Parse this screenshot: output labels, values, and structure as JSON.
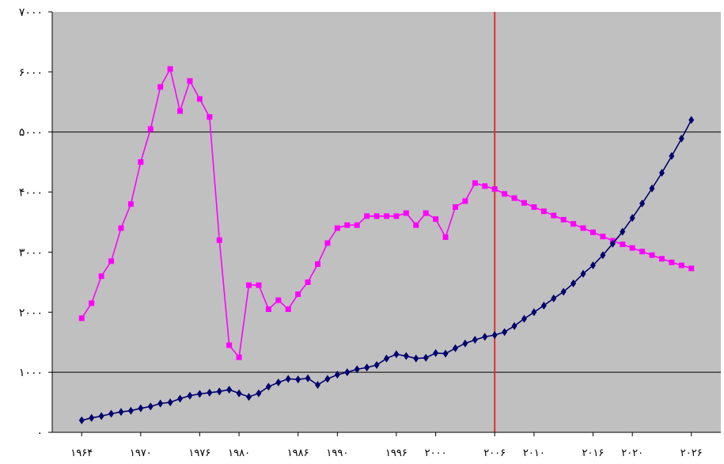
{
  "chart_data": {
    "type": "line",
    "title": "",
    "xlabel": "",
    "ylabel": "",
    "xlim": [
      1961,
      2029
    ],
    "ylim": [
      0,
      7000
    ],
    "grid": "horizontal lines at 1000 and 5000",
    "plot_background": "#c0c0c0",
    "vertical_marker": {
      "x": 2006,
      "color": "#e03030"
    },
    "y_ticks": [
      {
        "value": 0,
        "label": "۰"
      },
      {
        "value": 1000,
        "label": "۱۰۰۰"
      },
      {
        "value": 2000,
        "label": "۲۰۰۰"
      },
      {
        "value": 3000,
        "label": "۳۰۰۰"
      },
      {
        "value": 4000,
        "label": "۴۰۰۰"
      },
      {
        "value": 5000,
        "label": "۵۰۰۰"
      },
      {
        "value": 6000,
        "label": "۶۰۰۰"
      },
      {
        "value": 7000,
        "label": "۷۰۰۰"
      }
    ],
    "x_ticks": [
      {
        "value": 1964,
        "label": "۱۹۶۴"
      },
      {
        "value": 1970,
        "label": "۱۹۷۰"
      },
      {
        "value": 1976,
        "label": "۱۹۷۶"
      },
      {
        "value": 1980,
        "label": "۱۹۸۰"
      },
      {
        "value": 1986,
        "label": "۱۹۸۶"
      },
      {
        "value": 1990,
        "label": "۱۹۹۰"
      },
      {
        "value": 1996,
        "label": "۱۹۹۶"
      },
      {
        "value": 2000,
        "label": "۲۰۰۰"
      },
      {
        "value": 2006,
        "label": "۲۰۰۶"
      },
      {
        "value": 2010,
        "label": "۲۰۱۰"
      },
      {
        "value": 2016,
        "label": "۲۰۱۶"
      },
      {
        "value": 2020,
        "label": "۲۰۲۰"
      },
      {
        "value": 2026,
        "label": "۲۰۲۶"
      }
    ],
    "x": [
      1964,
      1965,
      1966,
      1967,
      1968,
      1969,
      1970,
      1971,
      1972,
      1973,
      1974,
      1975,
      1976,
      1977,
      1978,
      1979,
      1980,
      1981,
      1982,
      1983,
      1984,
      1985,
      1986,
      1987,
      1988,
      1989,
      1990,
      1991,
      1992,
      1993,
      1994,
      1995,
      1996,
      1997,
      1998,
      1999,
      2000,
      2001,
      2002,
      2003,
      2004,
      2005,
      2006,
      2007,
      2008,
      2009,
      2010,
      2011,
      2012,
      2013,
      2014,
      2015,
      2016,
      2017,
      2018,
      2019,
      2020,
      2021,
      2022,
      2023,
      2024,
      2025,
      2026
    ],
    "series": [
      {
        "color": "#ff00ff",
        "marker": "square",
        "values": [
          1900,
          2150,
          2600,
          2850,
          3400,
          3800,
          4500,
          5050,
          5750,
          6050,
          5350,
          5850,
          5550,
          5250,
          3200,
          1450,
          1250,
          2450,
          2450,
          2050,
          2200,
          2050,
          2300,
          2500,
          2800,
          3150,
          3400,
          3450,
          3450,
          3600,
          3600,
          3600,
          3600,
          3650,
          3450,
          3650,
          3550,
          3250,
          3750,
          3850,
          4150,
          4100,
          4050,
          3970,
          3900,
          3820,
          3750,
          3680,
          3610,
          3540,
          3470,
          3400,
          3330,
          3260,
          3190,
          3130,
          3070,
          3010,
          2950,
          2890,
          2830,
          2780,
          2730
        ]
      },
      {
        "color": "#00006e",
        "marker": "diamond",
        "values": [
          200,
          240,
          270,
          310,
          340,
          360,
          400,
          430,
          480,
          500,
          560,
          610,
          640,
          660,
          680,
          710,
          650,
          590,
          650,
          760,
          830,
          890,
          880,
          900,
          790,
          890,
          960,
          1000,
          1050,
          1080,
          1120,
          1230,
          1300,
          1270,
          1230,
          1240,
          1320,
          1310,
          1400,
          1480,
          1540,
          1590,
          1620,
          1670,
          1770,
          1890,
          2000,
          2110,
          2230,
          2340,
          2480,
          2640,
          2780,
          2950,
          3140,
          3340,
          3570,
          3810,
          4060,
          4320,
          4600,
          4890,
          5200
        ]
      }
    ]
  }
}
